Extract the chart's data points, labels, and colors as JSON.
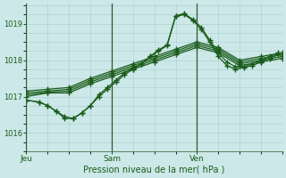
{
  "title": "Pression niveau de la mer( hPa )",
  "bg_color": "#cce8e8",
  "line_color": "#1a5c1a",
  "grid_color": "#aacccc",
  "ylim": [
    1015.6,
    1019.55
  ],
  "yticks": [
    1016,
    1017,
    1018,
    1019
  ],
  "xtick_labels": [
    "Jeu",
    "Sam",
    "Ven"
  ],
  "xtick_positions": [
    0,
    2,
    4
  ],
  "xlim": [
    0,
    6
  ],
  "lines": [
    {
      "x": [
        0,
        0.3,
        0.5,
        0.7,
        0.9,
        1.1,
        1.3,
        1.5,
        1.7,
        1.9,
        2.1,
        2.3,
        2.5,
        2.7,
        2.9,
        3.1,
        3.3,
        3.5,
        3.7,
        3.9,
        4.1,
        4.3,
        4.5,
        4.7,
        4.9,
        5.1,
        5.3,
        5.5,
        5.7,
        5.9
      ],
      "y": [
        1016.9,
        1016.85,
        1016.75,
        1016.6,
        1016.45,
        1016.4,
        1016.55,
        1016.75,
        1017.0,
        1017.2,
        1017.4,
        1017.6,
        1017.75,
        1017.9,
        1018.1,
        1018.25,
        1018.4,
        1019.2,
        1019.25,
        1019.1,
        1018.85,
        1018.5,
        1018.1,
        1017.85,
        1017.75,
        1017.8,
        1017.85,
        1017.95,
        1018.05,
        1018.15
      ]
    },
    {
      "x": [
        0,
        0.3,
        0.5,
        0.7,
        0.9,
        1.1,
        1.3,
        1.5,
        1.7,
        1.9,
        2.1,
        2.3,
        2.5,
        2.7,
        2.9,
        3.1,
        3.3,
        3.5,
        3.7,
        3.9,
        4.1,
        4.3,
        4.5,
        4.7,
        4.9,
        5.1,
        5.3,
        5.5,
        5.7,
        5.9
      ],
      "y": [
        1016.9,
        1016.85,
        1016.75,
        1016.6,
        1016.4,
        1016.4,
        1016.55,
        1016.75,
        1017.05,
        1017.25,
        1017.45,
        1017.65,
        1017.78,
        1017.9,
        1018.1,
        1018.28,
        1018.42,
        1019.22,
        1019.28,
        1019.12,
        1018.9,
        1018.55,
        1018.2,
        1017.95,
        1017.82,
        1017.82,
        1017.9,
        1018.0,
        1018.1,
        1018.2
      ]
    },
    {
      "x": [
        0,
        0.5,
        1.0,
        1.5,
        2.0,
        2.5,
        3.0,
        3.5,
        4.0,
        4.5,
        5.0,
        5.5,
        6.0
      ],
      "y": [
        1017.0,
        1017.1,
        1017.1,
        1017.35,
        1017.55,
        1017.75,
        1017.95,
        1018.15,
        1018.35,
        1018.2,
        1017.85,
        1017.95,
        1018.05
      ]
    },
    {
      "x": [
        0,
        0.5,
        1.0,
        1.5,
        2.0,
        2.5,
        3.0,
        3.5,
        4.0,
        4.5,
        5.0,
        5.5,
        6.0
      ],
      "y": [
        1017.05,
        1017.12,
        1017.15,
        1017.4,
        1017.6,
        1017.8,
        1018.0,
        1018.2,
        1018.4,
        1018.25,
        1017.9,
        1018.0,
        1018.1
      ]
    },
    {
      "x": [
        0,
        0.5,
        1.0,
        1.5,
        2.0,
        2.5,
        3.0,
        3.5,
        4.0,
        4.5,
        5.0,
        5.5,
        6.0
      ],
      "y": [
        1017.1,
        1017.15,
        1017.2,
        1017.45,
        1017.65,
        1017.85,
        1018.05,
        1018.25,
        1018.45,
        1018.3,
        1017.95,
        1018.05,
        1018.15
      ]
    },
    {
      "x": [
        0,
        0.5,
        1.0,
        1.5,
        2.0,
        2.5,
        3.0,
        3.5,
        4.0,
        4.5,
        5.0,
        5.5,
        6.0
      ],
      "y": [
        1017.15,
        1017.2,
        1017.25,
        1017.5,
        1017.7,
        1017.9,
        1018.1,
        1018.3,
        1018.5,
        1018.35,
        1018.0,
        1018.1,
        1018.2
      ]
    }
  ],
  "vline_positions": [
    0,
    2,
    4
  ],
  "vline_color": "#2a5a2a",
  "marker_style": "+",
  "marker_size": 4
}
